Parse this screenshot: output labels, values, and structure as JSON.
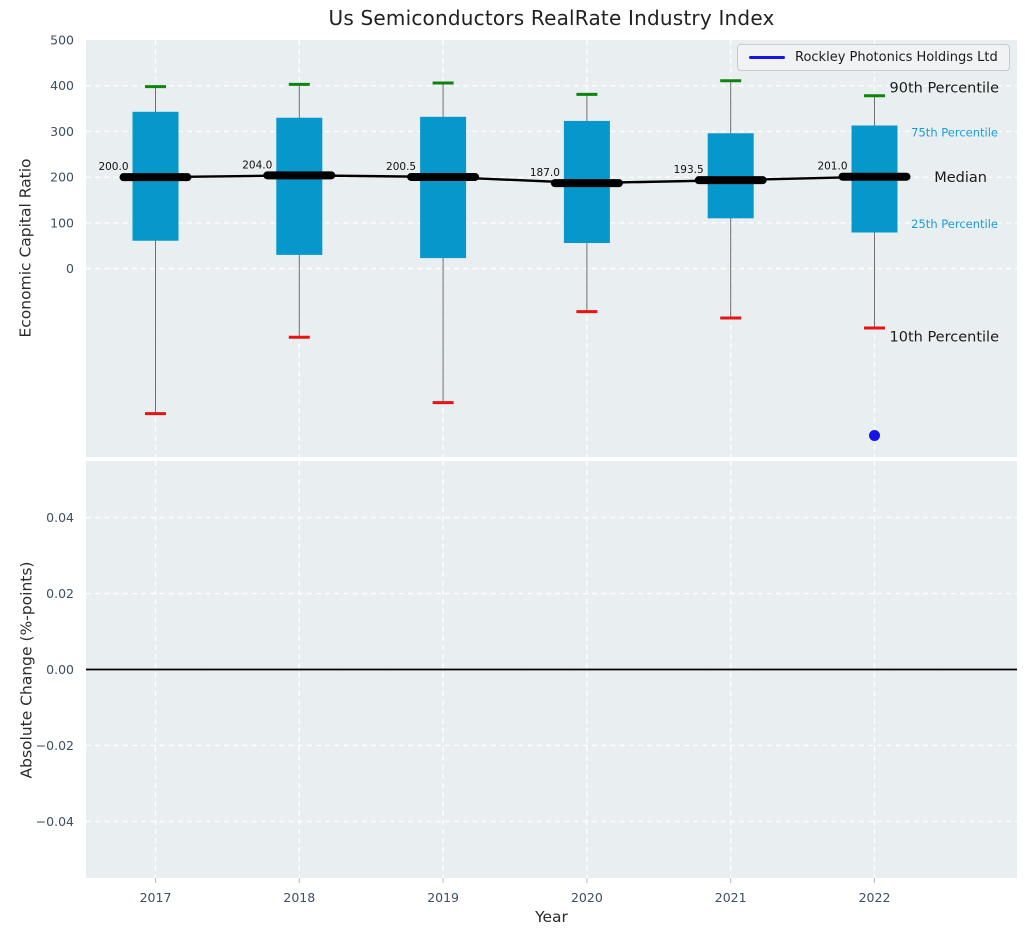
{
  "chart_data": {
    "type": "boxplot_with_series",
    "title": "Us Semiconductors RealRate Industry Index",
    "xlabel": "Year",
    "legend": {
      "label": "Rockley Photonics Holdings Ltd",
      "position": "upper right"
    },
    "colors": {
      "box_fill": "#0798cb",
      "p90_cap": "#0d840d",
      "p10_cap": "#ea1313",
      "median_line": "#000000",
      "whisker": "#6e6e6e",
      "company_series": "#1414e6",
      "annotation_major": "#1c1c1c",
      "annotation_minor": "#189cd8",
      "tick_text": "#3d4f63",
      "axes_bg": "#e9eef0",
      "gridline": "#ffffff"
    },
    "top_panel": {
      "ylabel": "Economic Capital Ratio",
      "ylim": [
        -412,
        500
      ],
      "yticks": [
        {
          "value": 500,
          "label": "500"
        },
        {
          "value": 400,
          "label": "400"
        },
        {
          "value": 300,
          "label": "300"
        },
        {
          "value": 200,
          "label": "200"
        },
        {
          "value": 100,
          "label": "100"
        },
        {
          "value": 0,
          "label": "0"
        }
      ],
      "categories": [
        "2017",
        "2018",
        "2019",
        "2020",
        "2021",
        "2022"
      ],
      "boxes": [
        {
          "year": "2017",
          "p90": 398,
          "p75": 343,
          "median": 200.0,
          "p25": 61,
          "p10": -317
        },
        {
          "year": "2018",
          "p90": 403,
          "p75": 330,
          "median": 204.0,
          "p25": 30,
          "p10": -150
        },
        {
          "year": "2019",
          "p90": 406,
          "p75": 332,
          "median": 200.5,
          "p25": 23,
          "p10": -293
        },
        {
          "year": "2020",
          "p90": 381,
          "p75": 323,
          "median": 187.0,
          "p25": 56,
          "p10": -94
        },
        {
          "year": "2021",
          "p90": 411,
          "p75": 296,
          "median": 193.5,
          "p25": 110,
          "p10": -108
        },
        {
          "year": "2022",
          "p90": 378,
          "p75": 313,
          "median": 201.0,
          "p25": 79,
          "p10": -130
        }
      ],
      "median_labels": [
        "200.0",
        "204.0",
        "200.5",
        "187.0",
        "193.5",
        "201.0"
      ],
      "company_point": {
        "year": "2022",
        "value": -365
      },
      "annotations": [
        {
          "label": "90th Percentile",
          "value": 396,
          "style": "major"
        },
        {
          "label": "75th Percentile",
          "value": 300,
          "style": "minor"
        },
        {
          "label": "Median",
          "value": 200,
          "style": "major"
        },
        {
          "label": "25th Percentile",
          "value": 100,
          "style": "minor"
        },
        {
          "label": "10th Percentile",
          "value": -148,
          "style": "major"
        }
      ]
    },
    "bottom_panel": {
      "ylabel": "Absolute Change (%-points)",
      "ylim": [
        -0.0549,
        0.0549
      ],
      "yticks": [
        {
          "value": 0.04,
          "label": "0.04"
        },
        {
          "value": 0.02,
          "label": "0.02"
        },
        {
          "value": 0.0,
          "label": "0.00"
        },
        {
          "value": -0.02,
          "label": "−0.02"
        },
        {
          "value": -0.04,
          "label": "−0.04"
        }
      ],
      "zero_line_value": 0.0,
      "categories": [
        "2017",
        "2018",
        "2019",
        "2020",
        "2021",
        "2022"
      ]
    }
  }
}
